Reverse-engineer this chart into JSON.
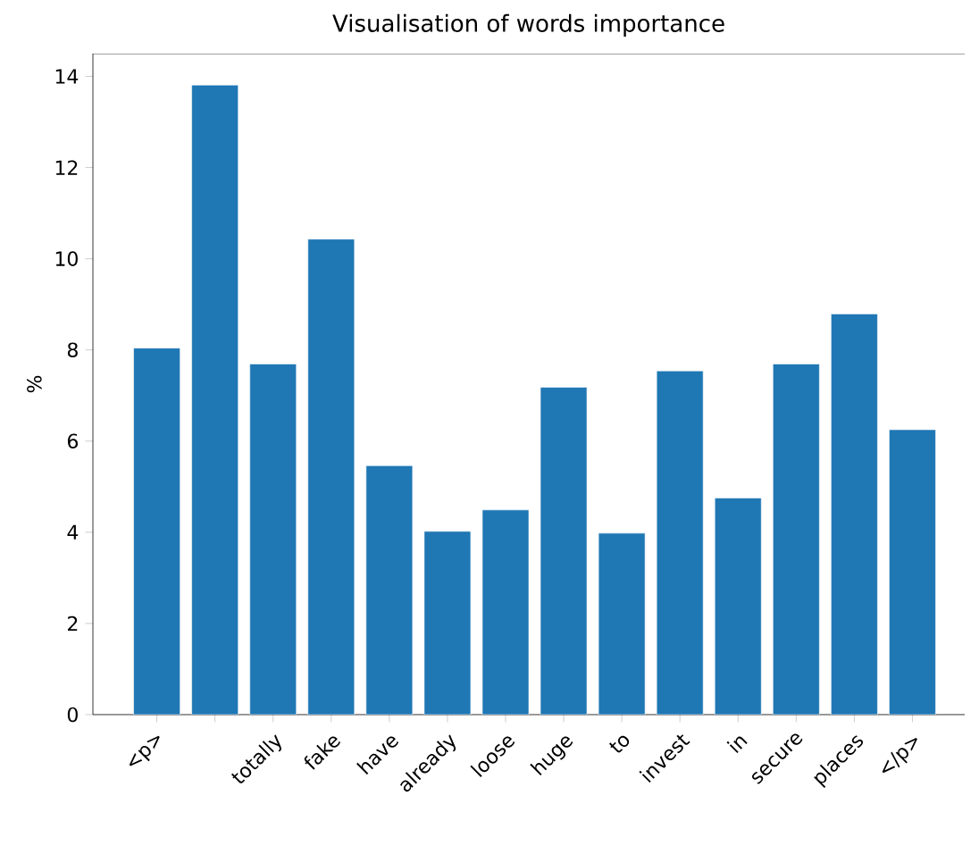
{
  "chart_data": {
    "type": "bar",
    "title": "Visualisation of words importance",
    "ylabel": "%",
    "categories": [
      "<p>",
      null,
      "totally",
      "fake",
      "have",
      "already",
      "loose",
      "huge",
      "to",
      "invest",
      "in",
      "secure",
      "places",
      "</p>"
    ],
    "values": [
      8.04,
      13.81,
      7.69,
      10.43,
      5.46,
      4.02,
      4.49,
      7.18,
      3.98,
      7.54,
      4.75,
      7.69,
      8.79,
      6.25
    ],
    "color": "#1f77b4",
    "ylim": [
      0,
      14.5
    ],
    "yticks": [
      0,
      2,
      4,
      6,
      8,
      10,
      12,
      14
    ]
  }
}
